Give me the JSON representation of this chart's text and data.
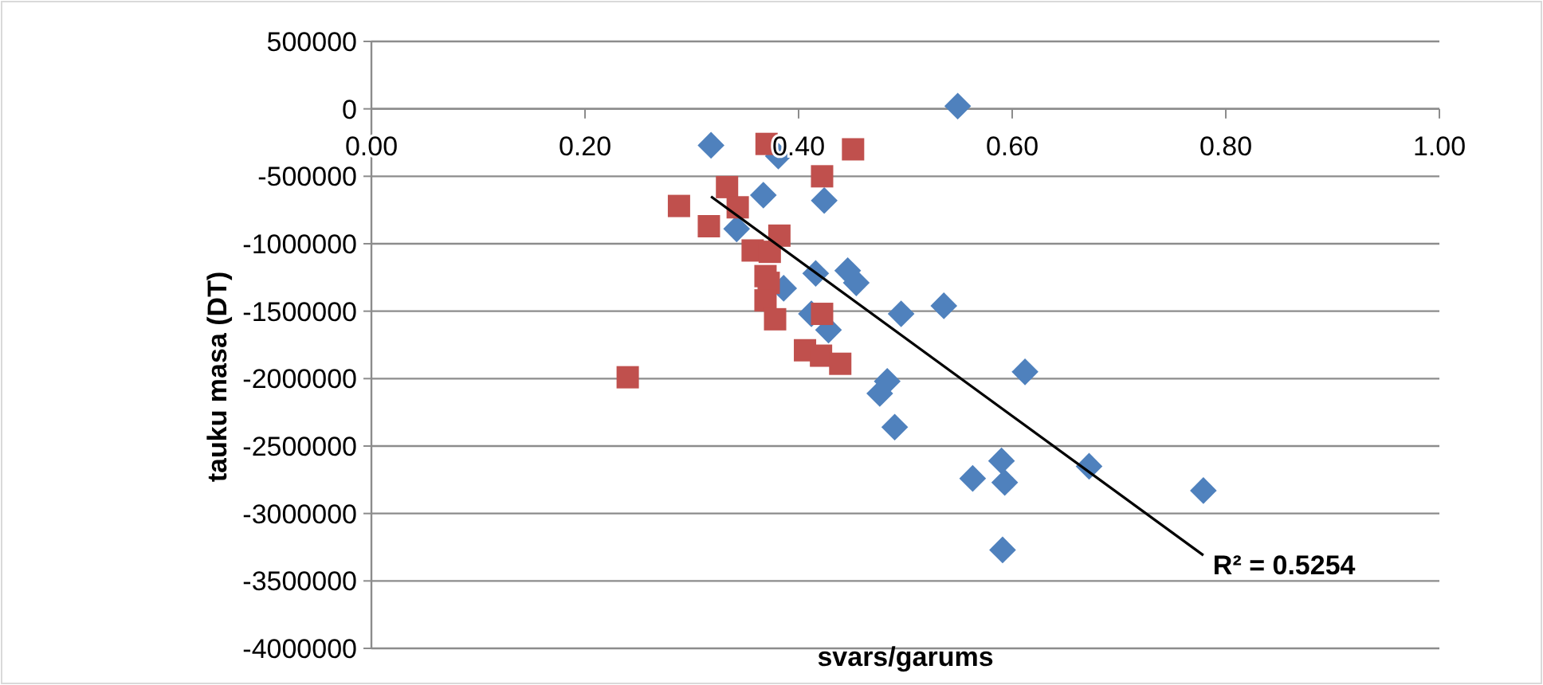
{
  "chart_data": {
    "type": "scatter",
    "xlabel": "svars/garums",
    "ylabel": "tauku masa (DT)",
    "xlim": [
      0,
      1
    ],
    "ylim": [
      -4000000,
      500000
    ],
    "xticks": [
      {
        "value": 0,
        "label": "0.00"
      },
      {
        "value": 0.2,
        "label": "0.20"
      },
      {
        "value": 0.4,
        "label": "0.40"
      },
      {
        "value": 0.6,
        "label": "0.60"
      },
      {
        "value": 0.8,
        "label": "0.80"
      },
      {
        "value": 1,
        "label": "1.00"
      }
    ],
    "yticks": [
      500000,
      0,
      -500000,
      -1000000,
      -1500000,
      -2000000,
      -2500000,
      -3000000,
      -3500000,
      -4000000
    ],
    "grid": "y",
    "series": [
      {
        "color": "#4f81bd",
        "marker": "diamond",
        "x": [
          0.549,
          0.318,
          0.381,
          0.367,
          0.424,
          0.342,
          0.416,
          0.446,
          0.454,
          0.386,
          0.496,
          0.536,
          0.412,
          0.428,
          0.612,
          0.483,
          0.476,
          0.49,
          0.59,
          0.563,
          0.593,
          0.672,
          0.779,
          0.591
        ],
        "values": [
          20000,
          -270000,
          -350000,
          -640000,
          -680000,
          -890000,
          -1220000,
          -1200000,
          -1290000,
          -1330000,
          -1520000,
          -1460000,
          -1520000,
          -1640000,
          -1950000,
          -2020000,
          -2110000,
          -2360000,
          -2610000,
          -2740000,
          -2770000,
          -2650000,
          -2830000,
          -3270000
        ]
      },
      {
        "color": "#c0504d",
        "marker": "square",
        "x": [
          0.37,
          0.451,
          0.422,
          0.333,
          0.288,
          0.343,
          0.316,
          0.382,
          0.357,
          0.373,
          0.369,
          0.372,
          0.369,
          0.378,
          0.422,
          0.406,
          0.421,
          0.439,
          0.24
        ],
        "values": [
          -260000,
          -300000,
          -500000,
          -580000,
          -720000,
          -730000,
          -870000,
          -940000,
          -1050000,
          -1060000,
          -1240000,
          -1290000,
          -1420000,
          -1560000,
          -1520000,
          -1790000,
          -1830000,
          -1890000,
          -1990000
        ]
      },
      {
        "type": "line",
        "color": "#000000",
        "marker": "none",
        "x": [
          0.318,
          0.779
        ],
        "values": [
          -650000,
          -3310000
        ]
      }
    ],
    "annotations": [
      "R² = 0.5254"
    ]
  }
}
